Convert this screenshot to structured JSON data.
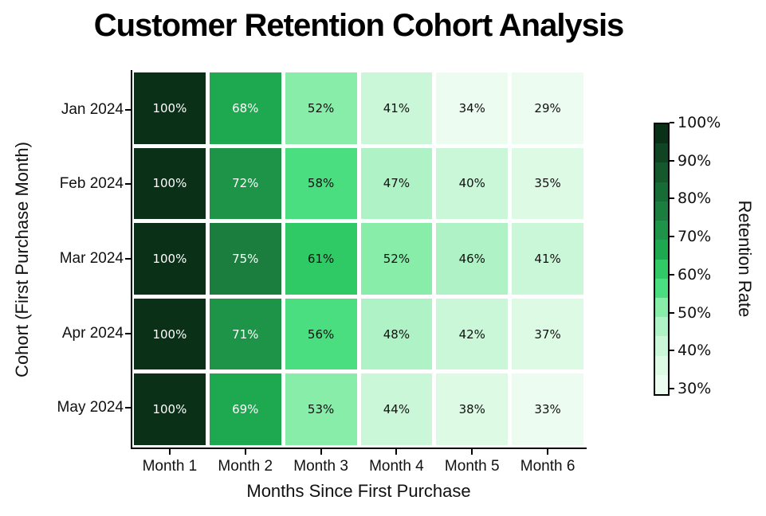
{
  "title": "Customer Retention Cohort Analysis",
  "chart_data": {
    "type": "heatmap",
    "title": "Customer Retention Cohort Analysis",
    "xlabel": "Months Since First Purchase",
    "ylabel": "Cohort (First Purchase Month)",
    "x_categories": [
      "Month 1",
      "Month 2",
      "Month 3",
      "Month 4",
      "Month 5",
      "Month 6"
    ],
    "y_categories": [
      "Jan 2024",
      "Feb 2024",
      "Mar 2024",
      "Apr 2024",
      "May 2024"
    ],
    "values": [
      [
        100,
        68,
        52,
        41,
        34,
        29
      ],
      [
        100,
        72,
        58,
        47,
        40,
        35
      ],
      [
        100,
        75,
        61,
        52,
        46,
        41
      ],
      [
        100,
        71,
        56,
        48,
        42,
        37
      ],
      [
        100,
        69,
        53,
        44,
        38,
        33
      ]
    ],
    "cell_label_suffix": "%",
    "grid_gap_color": "#ffffff",
    "cell_text_color_dark_bg": "#ffffff",
    "cell_text_color_light_bg": "#111111",
    "white_text_band_min": 7,
    "colorbar": {
      "label": "Retention Rate",
      "tick_labels": [
        "100%",
        "90%",
        "80%",
        "70%",
        "60%",
        "50%",
        "40%",
        "30%"
      ],
      "tick_values": [
        100,
        90,
        80,
        70,
        60,
        50,
        40,
        30
      ],
      "vmin": 29,
      "vmax": 100,
      "band_colors_light_to_dark": [
        "#ecfcf0",
        "#ddfae5",
        "#c9f7d8",
        "#aff2c5",
        "#88eda9",
        "#4ade80",
        "#2fc965",
        "#1ea850",
        "#1d9447",
        "#1b7e3e",
        "#176b35",
        "#14582c",
        "#104523",
        "#0a3118"
      ]
    }
  }
}
